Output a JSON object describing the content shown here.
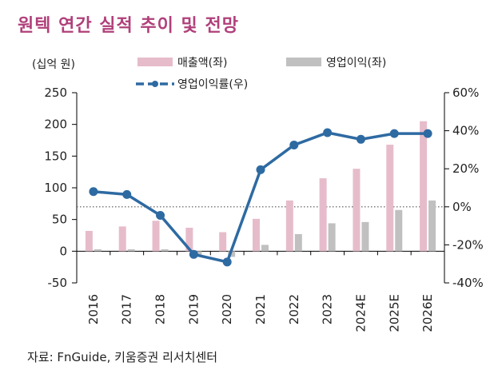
{
  "title": "원텍 연간 실적 추이 및 전망",
  "source": "자료: FnGuide, 키움증권 리서치센터",
  "colors": {
    "revenue": "#e6bccb",
    "op_profit": "#c0c0c0",
    "margin": "#2e6aa2",
    "title": "#b0407a"
  },
  "chart_data": {
    "type": "bar",
    "unit_label": "(십억 원)",
    "categories": [
      "2016",
      "2017",
      "2018",
      "2019",
      "2020",
      "2021",
      "2022",
      "2023",
      "2024E",
      "2025E",
      "2026E"
    ],
    "series": [
      {
        "name": "매출액(좌)",
        "type": "bar",
        "axis": "left",
        "values": [
          32,
          39,
          48,
          37,
          30,
          51,
          80,
          115,
          130,
          168,
          205
        ]
      },
      {
        "name": "영업이익(좌)",
        "type": "bar",
        "axis": "left",
        "values": [
          3,
          3,
          3,
          -9,
          -9,
          10,
          27,
          44,
          46,
          65,
          80
        ]
      },
      {
        "name": "영업이익률(우)",
        "type": "line",
        "axis": "right",
        "values": [
          8,
          6.5,
          -4.5,
          -25,
          -29,
          19.5,
          32.5,
          39,
          35.5,
          38.5,
          38.5
        ]
      }
    ],
    "y_left": {
      "min": -50,
      "max": 250,
      "ticks": [
        "-50",
        "0",
        "50",
        "100",
        "150",
        "200",
        "250"
      ]
    },
    "y_right": {
      "min": -40,
      "max": 60,
      "ticks": [
        "-40%",
        "-20%",
        "0%",
        "20%",
        "40%",
        "60%"
      ]
    },
    "legend_placement": "top",
    "zero_reference_line": "dotted"
  }
}
